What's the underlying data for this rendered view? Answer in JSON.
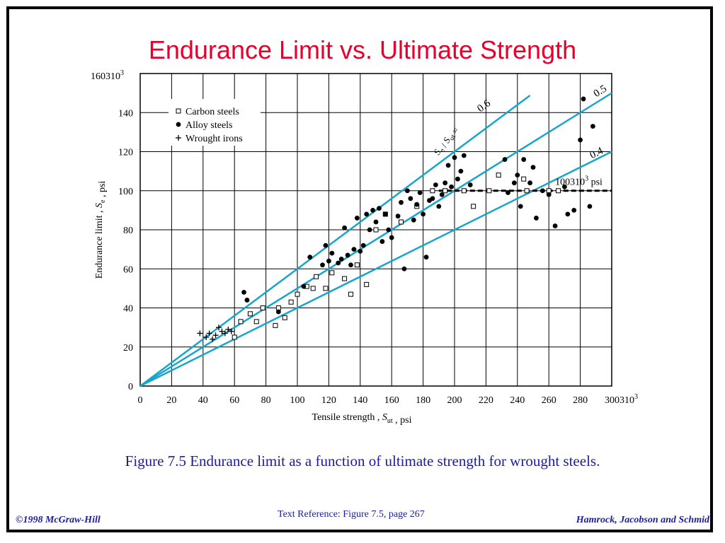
{
  "colors": {
    "title": "#e8002d",
    "caption": "#1c1c9c",
    "trend_line": "#17a5cc",
    "axis": "#000000",
    "grid": "#000000"
  },
  "slide": {
    "title": "Endurance Limit vs. Ultimate Strength",
    "caption": "Figure 7.5  Endurance limit as a function of ultimate strength for wrought steels.",
    "footer_left": "©1998 McGraw-Hill",
    "footer_center": "Text Reference:  Figure 7.5,  page 267",
    "footer_right": "Hamrock, Jacobson and Schmid"
  },
  "chart_data": {
    "type": "scatter",
    "xlabel": "Tensile strength , S_ut , psi",
    "ylabel": "Endurance limit , S_e , psi",
    "x_multiplier_label": "300310",
    "x_multiplier_exp": "3",
    "y_multiplier_label": "160310",
    "y_multiplier_exp": "3",
    "xlim": [
      0,
      300
    ],
    "ylim": [
      0,
      160
    ],
    "x_ticks": [
      0,
      20,
      40,
      60,
      80,
      100,
      120,
      140,
      160,
      180,
      200,
      220,
      240,
      260,
      280
    ],
    "y_ticks": [
      0,
      20,
      40,
      60,
      80,
      100,
      120,
      140
    ],
    "grid": true,
    "legend_position": "top-left",
    "legend": [
      {
        "marker": "open-square",
        "label": "Carbon steels"
      },
      {
        "marker": "filled-circle",
        "label": "Alloy steels"
      },
      {
        "marker": "plus",
        "label": "Wrought irons"
      }
    ],
    "ratio_lines": [
      {
        "label": "0.6",
        "slope": 0.6,
        "x_end": 248
      },
      {
        "label": "0.5",
        "slope": 0.5,
        "x_end": 300
      },
      {
        "label": "0.4",
        "slope": 0.4,
        "x_end": 300
      }
    ],
    "ratio_label_prefix": "S_e / S_ut =",
    "cap_line": {
      "y": 100,
      "x_start": 190,
      "x_end": 300,
      "label_text": "100310",
      "label_exp": "3",
      "label_suffix": " psi"
    },
    "series": [
      {
        "name": "Carbon steels",
        "marker": "open-square",
        "points": [
          [
            60,
            25
          ],
          [
            64,
            33
          ],
          [
            70,
            37
          ],
          [
            74,
            33
          ],
          [
            78,
            40
          ],
          [
            86,
            31
          ],
          [
            88,
            40
          ],
          [
            92,
            35
          ],
          [
            96,
            43
          ],
          [
            100,
            47
          ],
          [
            106,
            51
          ],
          [
            110,
            50
          ],
          [
            112,
            56
          ],
          [
            118,
            50
          ],
          [
            122,
            58
          ],
          [
            130,
            55
          ],
          [
            134,
            47
          ],
          [
            138,
            62
          ],
          [
            144,
            52
          ],
          [
            150,
            80
          ],
          [
            156,
            88
          ],
          [
            166,
            84
          ],
          [
            176,
            92
          ],
          [
            186,
            100
          ],
          [
            194,
            100
          ],
          [
            206,
            100
          ],
          [
            212,
            92
          ],
          [
            222,
            100
          ],
          [
            228,
            108
          ],
          [
            244,
            106
          ],
          [
            246,
            100
          ],
          [
            260,
            100
          ],
          [
            266,
            100
          ]
        ]
      },
      {
        "name": "Alloy steels",
        "marker": "filled-circle",
        "points": [
          [
            66,
            48
          ],
          [
            68,
            44
          ],
          [
            88,
            38
          ],
          [
            104,
            51
          ],
          [
            108,
            66
          ],
          [
            116,
            62
          ],
          [
            118,
            72
          ],
          [
            120,
            64
          ],
          [
            122,
            68
          ],
          [
            126,
            63
          ],
          [
            128,
            65
          ],
          [
            130,
            81
          ],
          [
            132,
            67
          ],
          [
            134,
            62
          ],
          [
            136,
            70
          ],
          [
            138,
            86
          ],
          [
            140,
            69
          ],
          [
            142,
            72
          ],
          [
            144,
            88
          ],
          [
            146,
            80
          ],
          [
            148,
            90
          ],
          [
            150,
            84
          ],
          [
            152,
            91
          ],
          [
            154,
            74
          ],
          [
            156,
            88
          ],
          [
            158,
            80
          ],
          [
            160,
            76
          ],
          [
            164,
            87
          ],
          [
            166,
            94
          ],
          [
            168,
            60
          ],
          [
            170,
            100
          ],
          [
            172,
            96
          ],
          [
            174,
            85
          ],
          [
            176,
            93
          ],
          [
            178,
            99
          ],
          [
            180,
            88
          ],
          [
            182,
            66
          ],
          [
            184,
            95
          ],
          [
            186,
            96
          ],
          [
            188,
            103
          ],
          [
            190,
            92
          ],
          [
            192,
            98
          ],
          [
            194,
            104
          ],
          [
            196,
            113
          ],
          [
            198,
            102
          ],
          [
            200,
            117
          ],
          [
            202,
            106
          ],
          [
            204,
            110
          ],
          [
            206,
            118
          ],
          [
            210,
            103
          ],
          [
            232,
            116
          ],
          [
            234,
            99
          ],
          [
            238,
            104
          ],
          [
            240,
            108
          ],
          [
            242,
            92
          ],
          [
            244,
            116
          ],
          [
            248,
            104
          ],
          [
            250,
            112
          ],
          [
            252,
            86
          ],
          [
            256,
            100
          ],
          [
            260,
            98
          ],
          [
            264,
            82
          ],
          [
            270,
            102
          ],
          [
            272,
            88
          ],
          [
            276,
            90
          ],
          [
            280,
            126
          ],
          [
            282,
            147
          ],
          [
            286,
            92
          ],
          [
            288,
            133
          ]
        ]
      },
      {
        "name": "Wrought irons",
        "marker": "plus",
        "points": [
          [
            38,
            27
          ],
          [
            42,
            25
          ],
          [
            44,
            27
          ],
          [
            46,
            24
          ],
          [
            48,
            26
          ],
          [
            50,
            30
          ],
          [
            52,
            28
          ],
          [
            54,
            27
          ],
          [
            56,
            29
          ],
          [
            58,
            28
          ]
        ]
      }
    ]
  }
}
